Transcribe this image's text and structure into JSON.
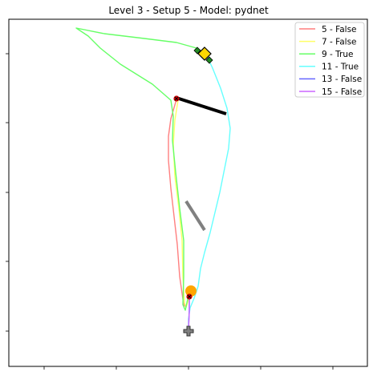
{
  "chart_data": {
    "type": "line",
    "title": "Level 3 - Setup 5 - Model: pydnet",
    "xlabel": "",
    "ylabel": "",
    "axes": {
      "tick_labels": "hidden",
      "grid": false
    },
    "legend": {
      "placement": "top-right",
      "entries": [
        {
          "label": "5 - False",
          "color": "#ff7f7f"
        },
        {
          "label": "7 - False",
          "color": "#ffff66"
        },
        {
          "label": "9 - True",
          "color": "#66ff66"
        },
        {
          "label": "11 - True",
          "color": "#66ffff"
        },
        {
          "label": "13 - False",
          "color": "#6666ff"
        },
        {
          "label": "15 - False",
          "color": "#cc66ff"
        }
      ]
    },
    "series": [
      {
        "name": "5 - False",
        "color": "#ff7f7f",
        "points": [
          [
            236,
            368
          ],
          [
            232,
            383
          ],
          [
            229,
            380
          ],
          [
            224,
            345
          ],
          [
            221,
            305
          ],
          [
            217,
            270
          ],
          [
            213,
            235
          ],
          [
            210,
            200
          ],
          [
            210,
            170
          ],
          [
            213,
            148
          ],
          [
            220,
            124
          ]
        ]
      },
      {
        "name": "7 - False",
        "color": "#ffff66",
        "points": [
          [
            236,
            371
          ],
          [
            232,
            383
          ],
          [
            230,
            378
          ],
          [
            228,
            345
          ],
          [
            227,
            300
          ],
          [
            223,
            260
          ],
          [
            218,
            220
          ],
          [
            216,
            180
          ],
          [
            218,
            150
          ],
          [
            222,
            125
          ]
        ]
      },
      {
        "name": "9 - True",
        "color": "#66ff66",
        "points": [
          [
            235,
            368
          ],
          [
            231,
            387
          ],
          [
            228,
            380
          ],
          [
            229,
            345
          ],
          [
            229,
            300
          ],
          [
            224,
            260
          ],
          [
            219,
            215
          ],
          [
            215,
            175
          ],
          [
            216,
            145
          ],
          [
            213,
            125
          ],
          [
            190,
            105
          ],
          [
            150,
            80
          ],
          [
            125,
            60
          ],
          [
            110,
            45
          ],
          [
            95,
            35
          ],
          [
            130,
            42
          ],
          [
            180,
            48
          ],
          [
            220,
            53
          ],
          [
            245,
            60
          ],
          [
            256,
            67
          ]
        ]
      },
      {
        "name": "11 - True",
        "color": "#66ffff",
        "points": [
          [
            235,
            412
          ],
          [
            235,
            398
          ],
          [
            237,
            384
          ],
          [
            242,
            372
          ],
          [
            247,
            357
          ],
          [
            250,
            335
          ],
          [
            255,
            315
          ],
          [
            262,
            290
          ],
          [
            268,
            265
          ],
          [
            274,
            240
          ],
          [
            280,
            210
          ],
          [
            285,
            185
          ],
          [
            287,
            160
          ],
          [
            283,
            135
          ],
          [
            275,
            110
          ],
          [
            265,
            85
          ],
          [
            258,
            70
          ]
        ]
      },
      {
        "name": "13 - False",
        "color": "#6666ff",
        "points": [
          [
            235,
            412
          ],
          [
            236,
            385
          ],
          [
            236,
            370
          ]
        ]
      },
      {
        "name": "15 - False",
        "color": "#cc66ff",
        "points": [
          [
            235,
            410
          ],
          [
            236,
            388
          ],
          [
            236,
            370
          ]
        ]
      }
    ],
    "annotations": {
      "obstacles": [
        {
          "from": [
            220,
            122
          ],
          "to": [
            282,
            142
          ],
          "color": "#000000"
        },
        {
          "from": [
            232,
            251
          ],
          "to": [
            255,
            287
          ],
          "color": "#808080"
        }
      ],
      "start_marker": {
        "shape": "plus",
        "at": [
          235,
          413
        ],
        "color": "#808080"
      },
      "goal_marker": {
        "shape": "diamond",
        "at": [
          255,
          67
        ],
        "color": "#ffd700"
      },
      "goal_bounds": {
        "shape": "diamond",
        "points": [
          [
            246,
            63
          ],
          [
            261,
            75
          ]
        ],
        "color": "#228b22"
      },
      "waypoint": {
        "shape": "circle",
        "at": [
          238,
          363
        ],
        "color": "#ffa500"
      },
      "crash_markers": [
        {
          "at": [
            220,
            123
          ]
        },
        {
          "at": [
            236,
            370
          ]
        }
      ]
    }
  }
}
